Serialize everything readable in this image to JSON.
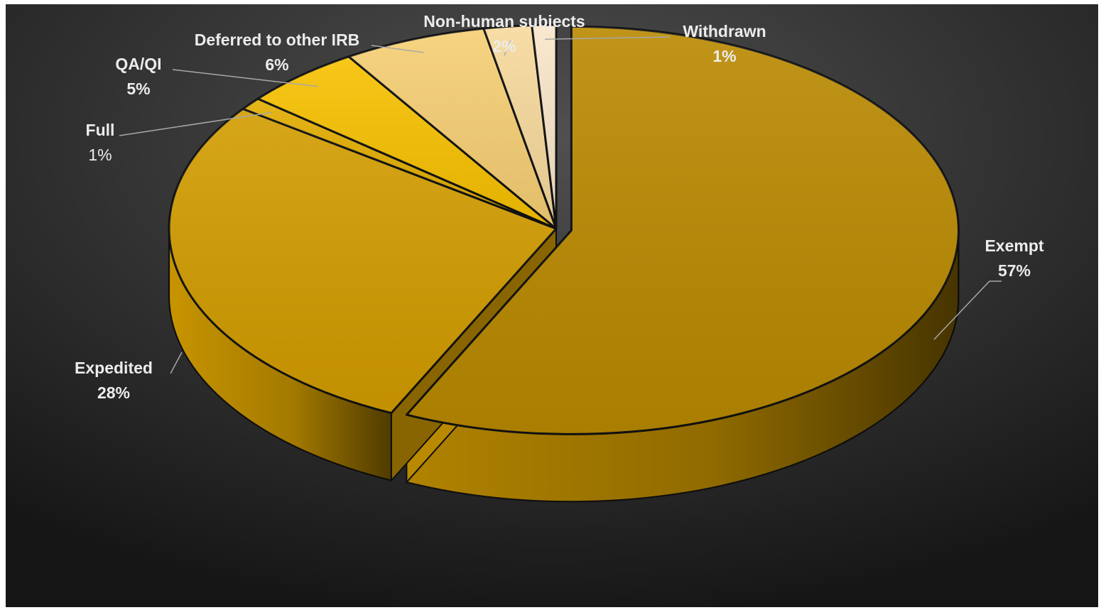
{
  "chart_data": {
    "type": "pie",
    "variant": "3d",
    "title": "",
    "legend": "none",
    "slices": [
      {
        "name": "Exempt",
        "value": 57,
        "label": "57%",
        "color": "#b98900",
        "exploded": true
      },
      {
        "name": "Expedited",
        "value": 28,
        "label": "28%",
        "color": "#d29c00"
      },
      {
        "name": "Full",
        "value": 1,
        "label": "1%",
        "color": "#e2ad00"
      },
      {
        "name": "QA/QI",
        "value": 5,
        "label": "5%",
        "color": "#f7c100"
      },
      {
        "name": "Deferred to other IRB",
        "value": 6,
        "label": "6%",
        "color": "#f6cf74"
      },
      {
        "name": "Non-human subjects",
        "value": 2,
        "label": "2%",
        "color": "#f7d99c"
      },
      {
        "name": "Withdrawn",
        "value": 1,
        "label": "1%",
        "color": "#f9e6c9"
      }
    ]
  },
  "background": {
    "inner": "#505050",
    "outer": "#161616"
  },
  "label_color": "#ececec",
  "leader_line_color": "#a8a8a8"
}
